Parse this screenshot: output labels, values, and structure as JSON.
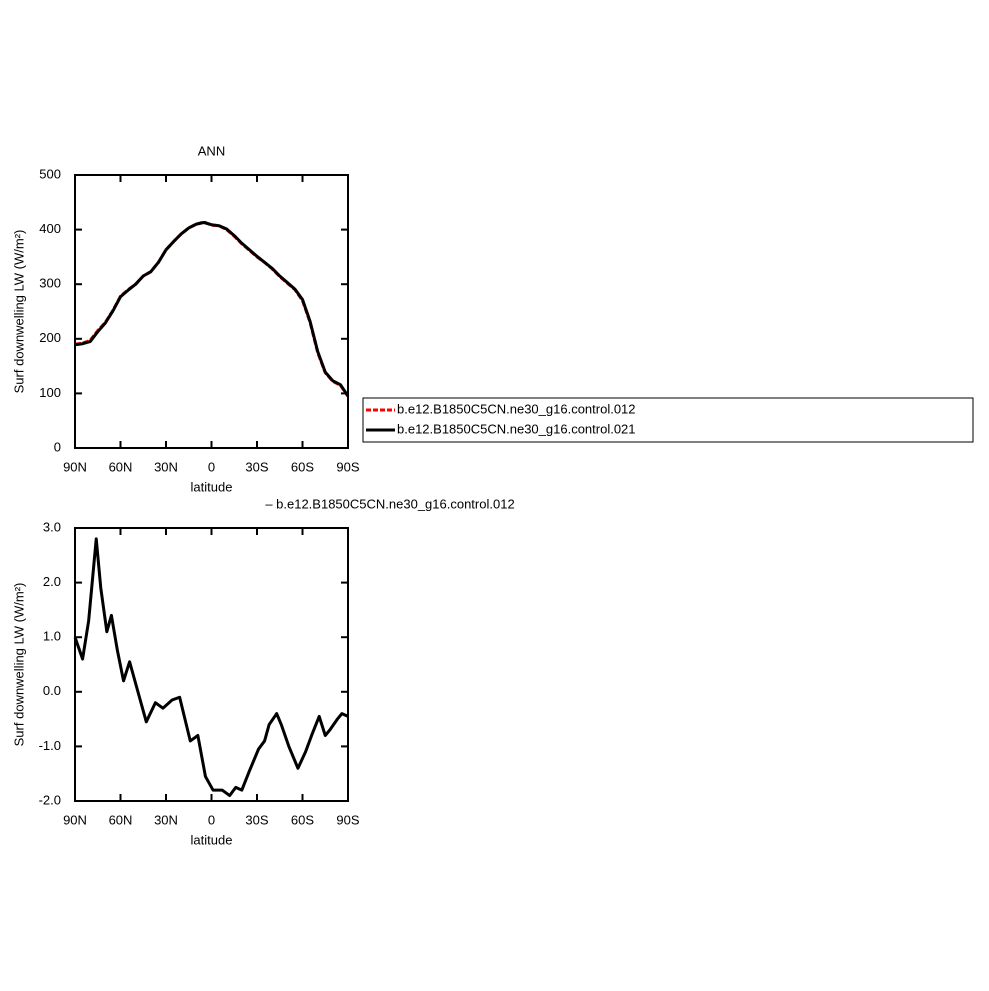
{
  "chart_data": [
    {
      "type": "line",
      "title": "ANN",
      "x_label": "latitude",
      "y_label": "Surf downwelling LW (W/m²)",
      "xlim": [
        90,
        -90
      ],
      "xticks": [
        {
          "value": 90,
          "label": "90N"
        },
        {
          "value": 60,
          "label": "60N"
        },
        {
          "value": 30,
          "label": "30N"
        },
        0,
        {
          "value": -30,
          "label": "30S"
        },
        {
          "value": -60,
          "label": "60S"
        },
        {
          "value": -90,
          "label": "90S"
        }
      ],
      "ylim": [
        0,
        500
      ],
      "yticks": [
        0,
        100,
        200,
        300,
        400,
        500
      ],
      "x": [
        90,
        85,
        80,
        75,
        70,
        65,
        60,
        55,
        50,
        45,
        40,
        35,
        30,
        25,
        20,
        15,
        10,
        5,
        0,
        -5,
        -10,
        -15,
        -20,
        -25,
        -30,
        -35,
        -40,
        -45,
        -50,
        -55,
        -60,
        -65,
        -70,
        -75,
        -80,
        -85,
        -90
      ],
      "series": [
        {
          "name": "b.e12.B1850C5CN.ne30_g16.control.012",
          "color": "#ff0000",
          "line_style": "dashed",
          "values": [
            190,
            192,
            197,
            215,
            230,
            252,
            278,
            290,
            300,
            315,
            323,
            340,
            363,
            378,
            392,
            403,
            410,
            414,
            408,
            407,
            400,
            388,
            374,
            362,
            350,
            340,
            328,
            314,
            302,
            290,
            270,
            230,
            175,
            138,
            122,
            115,
            95
          ]
        },
        {
          "name": "b.e12.B1850C5CN.ne30_g16.control.021",
          "color": "#000000",
          "line_style": "solid",
          "values": [
            189,
            191,
            195,
            213,
            229,
            251,
            277,
            289,
            300,
            315,
            323,
            340,
            363,
            378,
            392,
            403,
            410,
            413,
            409,
            407,
            401,
            389,
            375,
            363,
            351,
            340,
            329,
            315,
            303,
            291,
            272,
            232,
            177,
            139,
            123,
            116,
            95
          ]
        }
      ]
    },
    {
      "type": "line",
      "title": "– b.e12.B1850C5CN.ne30_g16.control.012",
      "x_label": "latitude",
      "y_label": "Surf downwelling LW (W/m²)",
      "xlim": [
        90,
        -90
      ],
      "xticks": [
        {
          "value": 90,
          "label": "90N"
        },
        {
          "value": 60,
          "label": "60N"
        },
        {
          "value": 30,
          "label": "30N"
        },
        0,
        {
          "value": -30,
          "label": "30S"
        },
        {
          "value": -60,
          "label": "60S"
        },
        {
          "value": -90,
          "label": "90S"
        }
      ],
      "ylim": [
        -2,
        3
      ],
      "yticks": [
        {
          "value": -2,
          "label": "-2.0"
        },
        {
          "value": -1,
          "label": "-1.0"
        },
        {
          "value": 0,
          "label": "0.0"
        },
        {
          "value": 1,
          "label": "1.0"
        },
        {
          "value": 2,
          "label": "2.0"
        },
        {
          "value": 3,
          "label": "3.0"
        }
      ],
      "x": [
        90,
        85,
        81,
        76,
        73,
        69,
        66,
        62,
        58,
        54,
        47,
        43,
        37,
        32,
        26,
        21,
        14,
        9,
        4,
        -1,
        -7,
        -12,
        -16,
        -20,
        -25,
        -31,
        -35,
        -38,
        -43,
        -46,
        -51,
        -57,
        -62,
        -66,
        -71,
        -75,
        -78,
        -83,
        -86,
        -90
      ],
      "series": [
        {
          "color": "#000000",
          "line_style": "solid",
          "values": [
            1.0,
            0.6,
            1.3,
            2.8,
            1.9,
            1.1,
            1.4,
            0.75,
            0.2,
            0.55,
            -0.15,
            -0.55,
            -0.2,
            -0.3,
            -0.15,
            -0.1,
            -0.9,
            -0.8,
            -1.55,
            -1.8,
            -1.8,
            -1.9,
            -1.75,
            -1.8,
            -1.45,
            -1.05,
            -0.9,
            -0.6,
            -0.4,
            -0.6,
            -1.0,
            -1.4,
            -1.1,
            -0.8,
            -0.45,
            -0.8,
            -0.7,
            -0.5,
            -0.4,
            -0.45
          ]
        }
      ]
    }
  ]
}
